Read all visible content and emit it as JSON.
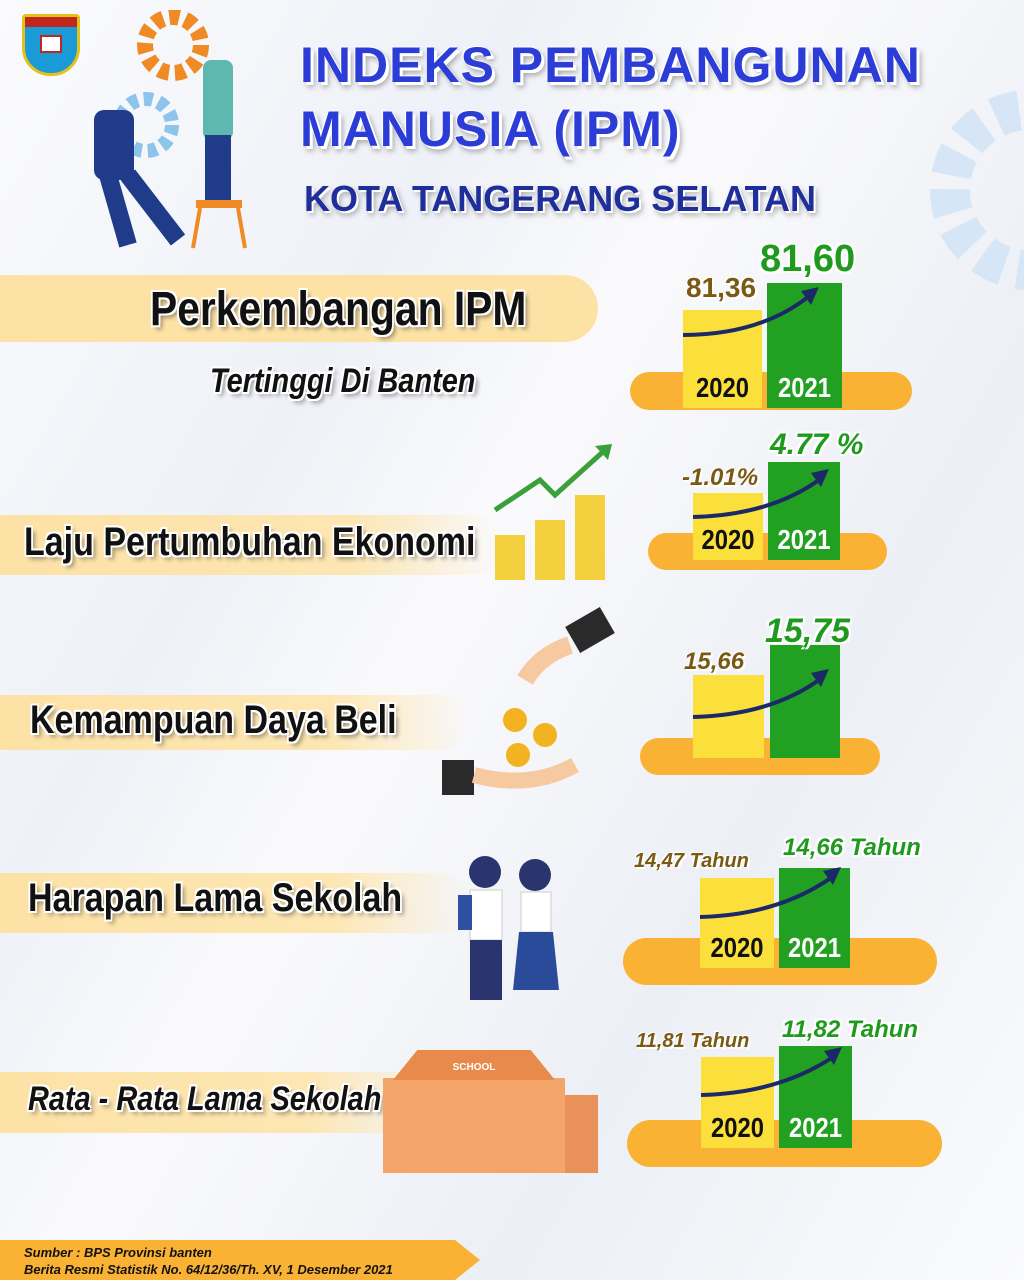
{
  "logo": {
    "text": "KOTA TANGERANG SELATAN"
  },
  "header": {
    "line1": "INDEKS PEMBANGUNAN",
    "line2": "MANUSIA (IPM)",
    "subtitle": "KOTA TANGERANG SELATAN"
  },
  "sections": [
    {
      "title": "Perkembangan  IPM",
      "note": "Tertinggi Di Banten",
      "year1": "2020",
      "year2": "2021",
      "value1": "81,36",
      "value2": "81,60"
    },
    {
      "title": "Laju  Pertumbuhan Ekonomi",
      "year1": "2020",
      "year2": "2021",
      "value1": "-1.01%",
      "value2": "4.77 %"
    },
    {
      "title": "Kemampuan  Daya Beli",
      "value1": "15,66",
      "value2": "15,75"
    },
    {
      "title": "Harapan Lama Sekolah",
      "year1": "2020",
      "year2": "2021",
      "value1": "14,47 Tahun",
      "value2": "14,66 Tahun"
    },
    {
      "title": "Rata - Rata Lama Sekolah",
      "school_sign": "SCHOOL",
      "year1": "2020",
      "year2": "2021",
      "value1": "11,81 Tahun",
      "value2": "11,82 Tahun"
    }
  ],
  "footer": {
    "source": "Sumber : BPS Provinsi banten",
    "reference": "Berita Resmi Statistik No. 64/12/36/Th. XV, 1 Desember 2021"
  },
  "colors": {
    "title_blue": "#2b3dd6",
    "bar_2020": "#fbe03c",
    "bar_2021": "#22a022",
    "base": "#f9b233"
  }
}
